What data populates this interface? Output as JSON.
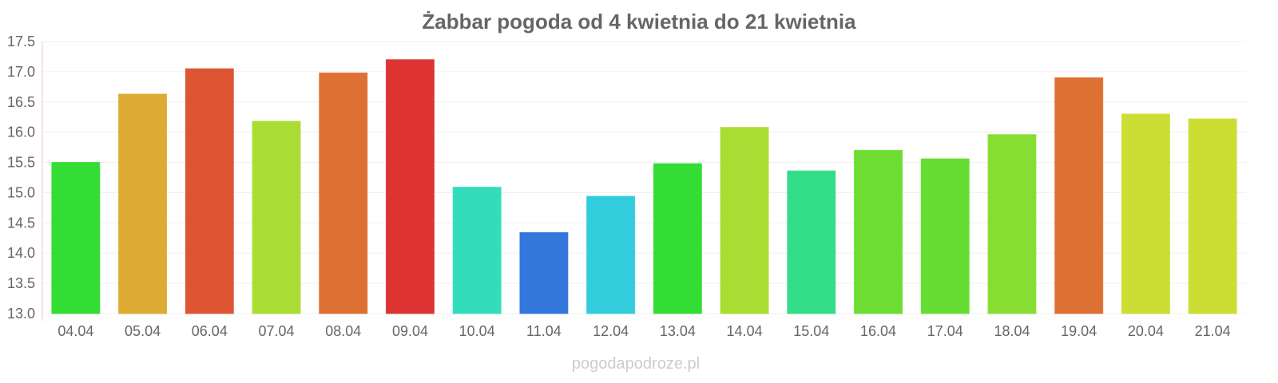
{
  "chart_data": {
    "type": "bar",
    "title": "Żabbar pogoda od 4 kwietnia do 21 kwietnia",
    "xlabel": "",
    "ylabel": "",
    "ylim": [
      13.0,
      17.5
    ],
    "yticks": [
      "13.0",
      "13.5",
      "14.0",
      "14.5",
      "15.0",
      "15.5",
      "16.0",
      "16.5",
      "17.0",
      "17.5"
    ],
    "grid": true,
    "categories": [
      "04.04",
      "05.04",
      "06.04",
      "07.04",
      "08.04",
      "09.04",
      "10.04",
      "11.04",
      "12.04",
      "13.04",
      "14.04",
      "15.04",
      "16.04",
      "17.04",
      "18.04",
      "19.04",
      "20.04",
      "21.04"
    ],
    "values": [
      15.5,
      16.63,
      17.05,
      16.18,
      16.98,
      17.2,
      15.09,
      14.34,
      14.94,
      15.48,
      16.08,
      15.36,
      15.7,
      15.56,
      15.96,
      16.9,
      16.3,
      16.22
    ],
    "colors": [
      "#33dd33",
      "#ddaa33",
      "#dd5533",
      "#aadd33",
      "#dd7033",
      "#dd3333",
      "#33ddbb",
      "#3377dd",
      "#33ccdd",
      "#33dd33",
      "#aadd33",
      "#33dd88",
      "#6ddd33",
      "#66dd33",
      "#88dd33",
      "#dd7033",
      "#ccdd33",
      "#ccdd33"
    ]
  },
  "watermark": "pogodapodroze.pl"
}
